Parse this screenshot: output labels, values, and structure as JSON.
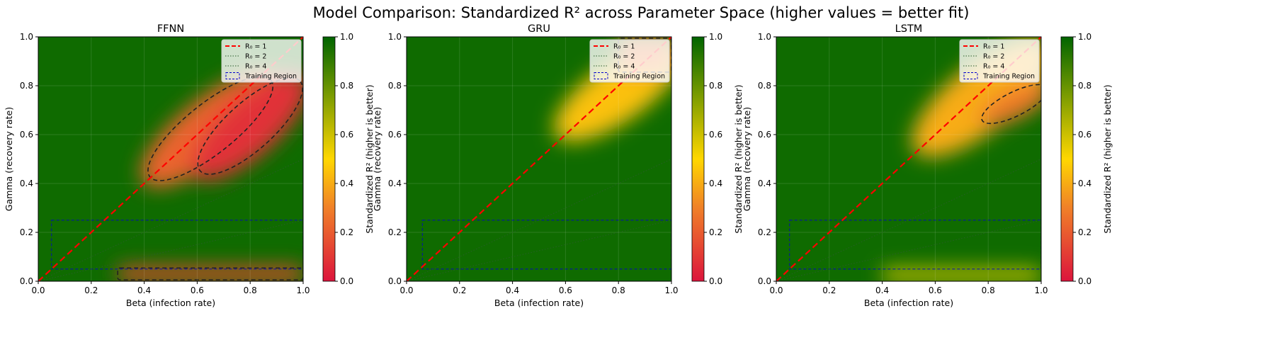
{
  "title": "Model Comparison: Standardized R² across Parameter Space (higher values = better fit)",
  "colors": {
    "good": "#006400",
    "mid": "#ffd700",
    "orange": "#f08028",
    "bad": "#dc143c",
    "r0_1_line": "#ff0000",
    "r0_other_lines": "#2a5d2a",
    "training_region": "#0000cd",
    "contour": "#222222"
  },
  "chart_data": [
    {
      "type": "heatmap",
      "title": "FFNN",
      "xlabel": "Beta (infection rate)",
      "ylabel": "Gamma (recovery rate)",
      "xlim": [
        0,
        1
      ],
      "ylim": [
        0,
        1
      ],
      "xticks": [
        "0.0",
        "0.2",
        "0.4",
        "0.6",
        "0.8",
        "1.0"
      ],
      "yticks": [
        "0.0",
        "0.2",
        "0.4",
        "0.6",
        "0.8",
        "1.0"
      ],
      "colorbar": {
        "label": "Standardized R² (higher is better)",
        "range": [
          0,
          1
        ],
        "ticks": [
          "0.0",
          "0.2",
          "0.4",
          "0.6",
          "0.8",
          "1.0"
        ]
      },
      "legend": {
        "position": "top-right",
        "entries": [
          "R₀ = 1",
          "R₀ = 2",
          "R₀ = 4",
          "Training Region"
        ]
      },
      "reference_lines": [
        {
          "name": "R₀ = 1",
          "beta_over_gamma": 1
        },
        {
          "name": "R₀ = 2",
          "beta_over_gamma": 2
        },
        {
          "name": "R₀ = 4",
          "beta_over_gamma": 4
        }
      ],
      "training_region": {
        "beta": [
          0.05,
          1.0
        ],
        "gamma": [
          0.05,
          0.25
        ]
      },
      "background_value": 0.97,
      "low_regions": [
        {
          "beta": [
            0.4,
            0.9
          ],
          "gamma": [
            0.4,
            0.85
          ],
          "tilt": 0.8,
          "lowest_value": 0.22
        },
        {
          "beta": [
            0.6,
            1.0
          ],
          "gamma": [
            0.42,
            0.85
          ],
          "tilt": 0.9,
          "lowest_value": 0.08
        },
        {
          "beta": [
            0.3,
            1.0
          ],
          "gamma": [
            0.0,
            0.06
          ],
          "tilt": 0,
          "lowest_value": 0.15
        }
      ]
    },
    {
      "type": "heatmap",
      "title": "GRU",
      "xlabel": "Beta (infection rate)",
      "ylabel": "Gamma (recovery rate)",
      "xlim": [
        0,
        1
      ],
      "ylim": [
        0,
        1
      ],
      "xticks": [
        "0.0",
        "0.2",
        "0.4",
        "0.6",
        "0.8",
        "1.0"
      ],
      "yticks": [
        "0.0",
        "0.2",
        "0.4",
        "0.6",
        "0.8",
        "1.0"
      ],
      "colorbar": {
        "label": "Standardized R² (higher is better)",
        "range": [
          0,
          1
        ],
        "ticks": [
          "0.0",
          "0.2",
          "0.4",
          "0.6",
          "0.8",
          "1.0"
        ]
      },
      "legend": {
        "position": "top-right",
        "entries": [
          "R₀ = 1",
          "R₀ = 2",
          "R₀ = 4",
          "Training Region"
        ]
      },
      "reference_lines": [
        {
          "name": "R₀ = 1",
          "beta_over_gamma": 1
        },
        {
          "name": "R₀ = 2",
          "beta_over_gamma": 2
        },
        {
          "name": "R₀ = 4",
          "beta_over_gamma": 4
        }
      ],
      "training_region": {
        "beta": [
          0.06,
          1.0
        ],
        "gamma": [
          0.05,
          0.25
        ]
      },
      "background_value": 0.97,
      "low_regions": [
        {
          "beta": [
            0.6,
            1.0
          ],
          "gamma": [
            0.55,
            1.0
          ],
          "tilt": 0.7,
          "lowest_value": 0.45
        },
        {
          "beta": [
            0.8,
            1.0
          ],
          "gamma": [
            0.85,
            1.0
          ],
          "tilt": 0,
          "lowest_value": 0.25
        }
      ]
    },
    {
      "type": "heatmap",
      "title": "LSTM",
      "xlabel": "Beta (infection rate)",
      "ylabel": "Gamma (recovery rate)",
      "xlim": [
        0,
        1
      ],
      "ylim": [
        0,
        1
      ],
      "xticks": [
        "0.0",
        "0.2",
        "0.4",
        "0.6",
        "0.8",
        "1.0"
      ],
      "yticks": [
        "0.0",
        "0.2",
        "0.4",
        "0.6",
        "0.8",
        "1.0"
      ],
      "colorbar": {
        "label": "Standardized R² (higher is better)",
        "range": [
          0,
          1
        ],
        "ticks": [
          "0.0",
          "0.2",
          "0.4",
          "0.6",
          "0.8",
          "1.0"
        ]
      },
      "legend": {
        "position": "top-right",
        "entries": [
          "R₀ = 1",
          "R₀ = 2",
          "R₀ = 4",
          "Training Region"
        ]
      },
      "reference_lines": [
        {
          "name": "R₀ = 1",
          "beta_over_gamma": 1
        },
        {
          "name": "R₀ = 2",
          "beta_over_gamma": 2
        },
        {
          "name": "R₀ = 4",
          "beta_over_gamma": 4
        }
      ],
      "training_region": {
        "beta": [
          0.05,
          1.0
        ],
        "gamma": [
          0.05,
          0.25
        ]
      },
      "background_value": 0.97,
      "low_regions": [
        {
          "beta": [
            0.55,
            1.0
          ],
          "gamma": [
            0.5,
            1.0
          ],
          "tilt": 0.8,
          "lowest_value": 0.4
        },
        {
          "beta": [
            0.8,
            1.0
          ],
          "gamma": [
            0.6,
            0.85
          ],
          "tilt": 0.5,
          "lowest_value": 0.28
        },
        {
          "beta": [
            0.4,
            1.0
          ],
          "gamma": [
            0.0,
            0.05
          ],
          "tilt": 0,
          "lowest_value": 0.55
        }
      ]
    }
  ]
}
